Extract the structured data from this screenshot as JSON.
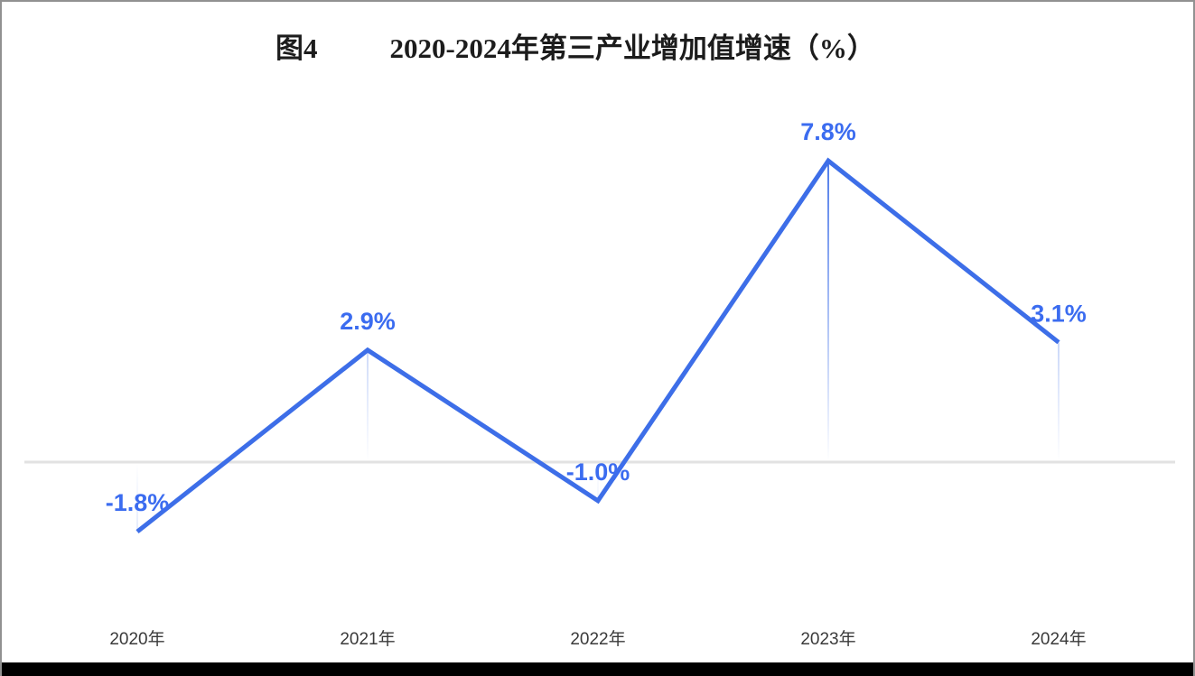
{
  "title": {
    "prefix": "图4",
    "text": "2020-2024年第三产业增加值增速（%）"
  },
  "chart_data": {
    "type": "line",
    "title": "图4 2020-2024年第三产业增加值增速（%）",
    "categories": [
      "2020年",
      "2021年",
      "2022年",
      "2023年",
      "2024年"
    ],
    "values": [
      -1.8,
      2.9,
      -1.0,
      7.8,
      3.1
    ],
    "point_labels": [
      "-1.8%",
      "2.9%",
      "-1.0%",
      "7.8%",
      "3.1%"
    ],
    "series_name": "第三产业增加值增速",
    "xlabel": "",
    "ylabel": "",
    "unit": "%",
    "ylim": [
      -3,
      9
    ],
    "baseline": 0,
    "grid": false,
    "legend": false,
    "colors": {
      "line": "#3d6ee8",
      "point_label": "#3b6cf0",
      "axis_line": "#e2e2e2",
      "x_tick_label": "#3a3a3a",
      "title_text": "#1c1c1c",
      "frame_border": "#919191",
      "bottom_bar": "#000000"
    }
  }
}
